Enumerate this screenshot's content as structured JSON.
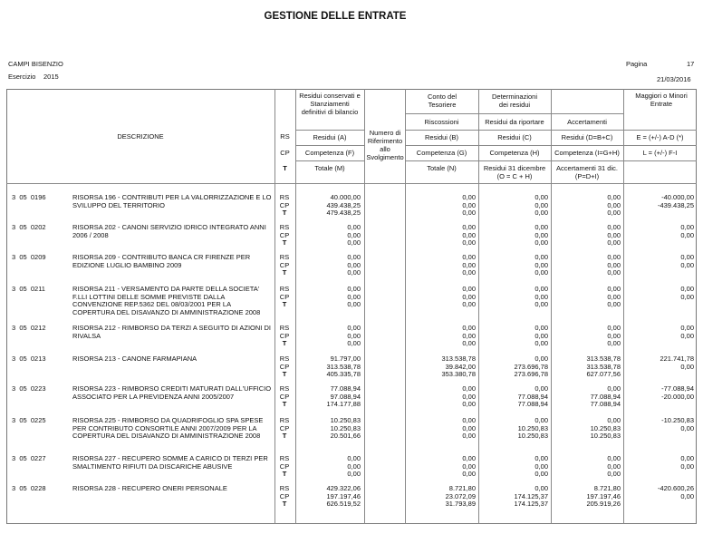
{
  "title": "GESTIONE DELLE ENTRATE",
  "header": {
    "ente": "CAMPI BISENZIO",
    "esercizio_label": "Esercizio",
    "esercizio": "2015",
    "pagina_label": "Pagina",
    "pagina": "17",
    "date": "21/03/2016"
  },
  "columns": {
    "descrizione": "DESCRIZIONE",
    "rs": "RS",
    "cp": "CP",
    "t": "T",
    "col_a_group": "Residui conservati e Stanziamenti definitivi di bilancio",
    "col_a": [
      "Residui (A)",
      "Competenza (F)",
      "Totale (M)"
    ],
    "numero_rif": "Numero di Riferimento allo Svolgimento",
    "conto_tesoriere": "Conto del Tesoriere",
    "riscossioni": "Riscossioni",
    "col_b": [
      "Residui (B)",
      "Competenza (G)",
      "Totale (N)"
    ],
    "determinazioni": "Determinazioni dei residui",
    "residui_riportare": "Residui da riportare",
    "col_c": [
      "Residui (C)",
      "Competenza (H)",
      "Residui 31 dicembre (O = C + H)"
    ],
    "accertamenti": "Accertamenti",
    "col_d": [
      "Residui (D=B+C)",
      "Competenza (I=G+H)",
      "Accertamenti 31 dic. (P=D+I)"
    ],
    "maggiori": "Maggiori o Minori Entrate",
    "col_e": [
      "E = (+/-) A-D (*)",
      "L = (+/-) F-I"
    ]
  },
  "records": [
    {
      "code": "3  05  0196",
      "description": "RISORSA 196 - CONTRIBUTI PER LA VALORRIZZAZIONE E LO SVILUPPO DEL TERRITORIO",
      "RS": [
        "40.000,00",
        "0,00",
        "0,00",
        "0,00",
        "-40.000,00"
      ],
      "CP": [
        "439.438,25",
        "0,00",
        "0,00",
        "0,00",
        "-439.438,25"
      ],
      "T": [
        "479.438,25",
        "0,00",
        "0,00",
        "0,00"
      ]
    },
    {
      "code": "3  05  0202",
      "description": "RISORSA 202 - CANONI SERVIZIO IDRICO INTEGRATO ANNI 2006 / 2008",
      "RS": [
        "0,00",
        "0,00",
        "0,00",
        "0,00",
        "0,00"
      ],
      "CP": [
        "0,00",
        "0,00",
        "0,00",
        "0,00",
        "0,00"
      ],
      "T": [
        "0,00",
        "0,00",
        "0,00",
        "0,00"
      ]
    },
    {
      "code": "3  05  0209",
      "description": "RISORSA 209 - CONTRIBUTO BANCA CR FIRENZE PER EDIZIONE LUGLIO BAMBINO 2009",
      "RS": [
        "0,00",
        "0,00",
        "0,00",
        "0,00",
        "0,00"
      ],
      "CP": [
        "0,00",
        "0,00",
        "0,00",
        "0,00",
        "0,00"
      ],
      "T": [
        "0,00",
        "0,00",
        "0,00",
        "0,00"
      ]
    },
    {
      "code": "3  05  0211",
      "description": "RISORSA 211 - VERSAMENTO DA PARTE DELLA SOCIETA' F.LLI LOTTINI DELLE SOMME PREVISTE DALLA CONVENZIONE REP.5362 DEL 08/03/2001 PER LA COPERTURA DEL DISAVANZO DI AMMINISTRAZIONE 2008",
      "RS": [
        "0,00",
        "0,00",
        "0,00",
        "0,00",
        "0,00"
      ],
      "CP": [
        "0,00",
        "0,00",
        "0,00",
        "0,00",
        "0,00"
      ],
      "T": [
        "0,00",
        "0,00",
        "0,00",
        "0,00"
      ]
    },
    {
      "code": "3  05  0212",
      "description": "RISORSA 212 - RIMBORSO DA TERZI A SEGUITO DI AZIONI DI RIVALSA",
      "RS": [
        "0,00",
        "0,00",
        "0,00",
        "0,00",
        "0,00"
      ],
      "CP": [
        "0,00",
        "0,00",
        "0,00",
        "0,00",
        "0,00"
      ],
      "T": [
        "0,00",
        "0,00",
        "0,00",
        "0,00"
      ]
    },
    {
      "code": "3  05  0213",
      "description": "RISORSA 213 - CANONE FARMAPIANA",
      "RS": [
        "91.797,00",
        "313.538,78",
        "0,00",
        "313.538,78",
        "221.741,78"
      ],
      "CP": [
        "313.538,78",
        "39.842,00",
        "273.696,78",
        "313.538,78",
        "0,00"
      ],
      "T": [
        "405.335,78",
        "353.380,78",
        "273.696,78",
        "627.077,56"
      ]
    },
    {
      "code": "3  05  0223",
      "description": "RISORSA 223 - RIMBORSO CREDITI MATURATI DALL'UFFICIO ASSOCIATO PER LA PREVIDENZA ANNI 2005/2007",
      "RS": [
        "77.088,94",
        "0,00",
        "0,00",
        "0,00",
        "-77.088,94"
      ],
      "CP": [
        "97.088,94",
        "0,00",
        "77.088,94",
        "77.088,94",
        "-20.000,00"
      ],
      "T": [
        "174.177,88",
        "0,00",
        "77.088,94",
        "77.088,94"
      ]
    },
    {
      "code": "3  05  0225",
      "description": "RISORSA 225 - RIMBORSO DA QUADRIFOGLIO SPA SPESE PER CONTRIBUTO CONSORTILE ANNI 2007/2009 PER LA COPERTURA DEL DISAVANZO DI AMMINISTRAZIONE 2008",
      "RS": [
        "10.250,83",
        "0,00",
        "0,00",
        "0,00",
        "-10.250,83"
      ],
      "CP": [
        "10.250,83",
        "0,00",
        "10.250,83",
        "10.250,83",
        "0,00"
      ],
      "T": [
        "20.501,66",
        "0,00",
        "10.250,83",
        "10.250,83"
      ]
    },
    {
      "code": "3  05  0227",
      "description": "RISORSA 227 - RECUPERO SOMME A CARICO DI TERZI PER SMALTIMENTO RIFIUTI DA DISCARICHE ABUSIVE",
      "RS": [
        "0,00",
        "0,00",
        "0,00",
        "0,00",
        "0,00"
      ],
      "CP": [
        "0,00",
        "0,00",
        "0,00",
        "0,00",
        "0,00"
      ],
      "T": [
        "0,00",
        "0,00",
        "0,00",
        "0,00"
      ]
    },
    {
      "code": "3  05  0228",
      "description": "RISORSA 228 - RECUPERO ONERI PERSONALE",
      "RS": [
        "429.322,06",
        "8.721,80",
        "0,00",
        "8.721,80",
        "-420.600,26"
      ],
      "CP": [
        "197.197,46",
        "23.072,09",
        "174.125,37",
        "197.197,46",
        "0,00"
      ],
      "T": [
        "626.519,52",
        "31.793,89",
        "174.125,37",
        "205.919,26"
      ]
    }
  ]
}
